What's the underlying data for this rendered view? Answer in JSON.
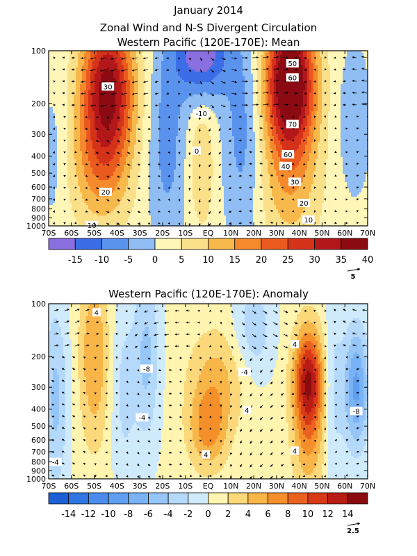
{
  "figure": {
    "title_line1": "January 2014",
    "title_line2": "Zonal Wind and N-S Divergent Circulation",
    "title_line3": "Western Pacific (120E-170E): Mean",
    "title_panel2": "Western Pacific (120E-170E): Anomaly"
  },
  "chart_data": [
    {
      "type": "heatmap",
      "title": "Western Pacific (120E-170E): Mean",
      "x_ticks": [
        "70S",
        "60S",
        "50S",
        "40S",
        "30S",
        "20S",
        "10S",
        "EQ",
        "10N",
        "20N",
        "30N",
        "40N",
        "50N",
        "60N",
        "70N"
      ],
      "x_values": [
        -70,
        -60,
        -50,
        -40,
        -30,
        -20,
        -10,
        0,
        10,
        20,
        30,
        40,
        50,
        60,
        70
      ],
      "xlim": [
        -70,
        70
      ],
      "y_ticks": [
        "100",
        "200",
        "300",
        "400",
        "500",
        "600",
        "700",
        "800",
        "900",
        "1000"
      ],
      "y_values": [
        100,
        200,
        300,
        400,
        500,
        600,
        700,
        800,
        900,
        1000
      ],
      "ylim": [
        1000,
        100
      ],
      "y_scale": "log",
      "colorbar_labels": [
        "-15",
        "-10",
        "-5",
        "0",
        "5",
        "10",
        "15",
        "20",
        "25",
        "30",
        "35",
        "40"
      ],
      "colorbar_levels": [
        -20,
        -15,
        -10,
        -5,
        0,
        5,
        10,
        15,
        20,
        25,
        30,
        35,
        40,
        45
      ],
      "colors": [
        "#8a6fe0",
        "#3b6ee6",
        "#5a93ee",
        "#8fbdf4",
        "#fff6b8",
        "#fbe08a",
        "#f8b94c",
        "#f58a2c",
        "#ea5a1e",
        "#d5321a",
        "#b4171a",
        "#8c0a12"
      ],
      "vector_ref": "5",
      "contour_labels": [
        {
          "text": "30",
          "lat": -44,
          "p": 160
        },
        {
          "text": "20",
          "lat": -45,
          "p": 640
        },
        {
          "text": "10",
          "lat": -51,
          "p": 990
        },
        {
          "text": "-10",
          "lat": -3,
          "p": 228
        },
        {
          "text": "0",
          "lat": -5,
          "p": 372
        },
        {
          "text": "50",
          "lat": 37,
          "p": 118
        },
        {
          "text": "60",
          "lat": 37,
          "p": 142
        },
        {
          "text": "70",
          "lat": 37,
          "p": 262
        },
        {
          "text": "60",
          "lat": 35,
          "p": 390
        },
        {
          "text": "40",
          "lat": 34,
          "p": 455
        },
        {
          "text": "30",
          "lat": 38,
          "p": 560
        },
        {
          "text": "20",
          "lat": 42,
          "p": 740
        },
        {
          "text": "10",
          "lat": 44,
          "p": 920
        }
      ]
    },
    {
      "type": "heatmap",
      "title": "Western Pacific (120E-170E): Anomaly",
      "x_ticks": [
        "70S",
        "60S",
        "50S",
        "40S",
        "30S",
        "20S",
        "10S",
        "EQ",
        "10N",
        "20N",
        "30N",
        "40N",
        "50N",
        "60N",
        "70N"
      ],
      "x_values": [
        -70,
        -60,
        -50,
        -40,
        -30,
        -20,
        -10,
        0,
        10,
        20,
        30,
        40,
        50,
        60,
        70
      ],
      "xlim": [
        -70,
        70
      ],
      "y_ticks": [
        "100",
        "200",
        "300",
        "400",
        "500",
        "600",
        "700",
        "800",
        "900",
        "1000"
      ],
      "y_values": [
        100,
        200,
        300,
        400,
        500,
        600,
        700,
        800,
        900,
        1000
      ],
      "ylim": [
        1000,
        100
      ],
      "y_scale": "log",
      "colorbar_labels": [
        "-14",
        "-12",
        "-10",
        "-8",
        "-6",
        "-4",
        "-2",
        "0",
        "2",
        "4",
        "6",
        "8",
        "10",
        "12",
        "14"
      ],
      "colorbar_levels": [
        -16,
        -14,
        -12,
        -10,
        -8,
        -6,
        -4,
        -2,
        0,
        2,
        4,
        6,
        8,
        10,
        12,
        14,
        16
      ],
      "colors": [
        "#1c5fd6",
        "#2f76e3",
        "#4a8ced",
        "#5f9ff2",
        "#79b2f5",
        "#96c6f8",
        "#b5d9fa",
        "#cfeafb",
        "#fff4b0",
        "#fbd97a",
        "#f8b548",
        "#f58f2a",
        "#ea621e",
        "#d83a17",
        "#b91c14",
        "#8a0c0e"
      ],
      "vector_ref": "2.5",
      "contour_labels": [
        {
          "text": "4",
          "lat": -49,
          "p": 112
        },
        {
          "text": "-8",
          "lat": -27,
          "p": 235
        },
        {
          "text": "-4",
          "lat": -29,
          "p": 445
        },
        {
          "text": "-4",
          "lat": -67,
          "p": 800
        },
        {
          "text": "4",
          "lat": -1,
          "p": 725
        },
        {
          "text": "-4",
          "lat": 16,
          "p": 245
        },
        {
          "text": "4",
          "lat": 17,
          "p": 405
        },
        {
          "text": "4",
          "lat": 38,
          "p": 170
        },
        {
          "text": "4",
          "lat": 38,
          "p": 690
        },
        {
          "text": "-8",
          "lat": 65,
          "p": 410
        }
      ]
    }
  ]
}
